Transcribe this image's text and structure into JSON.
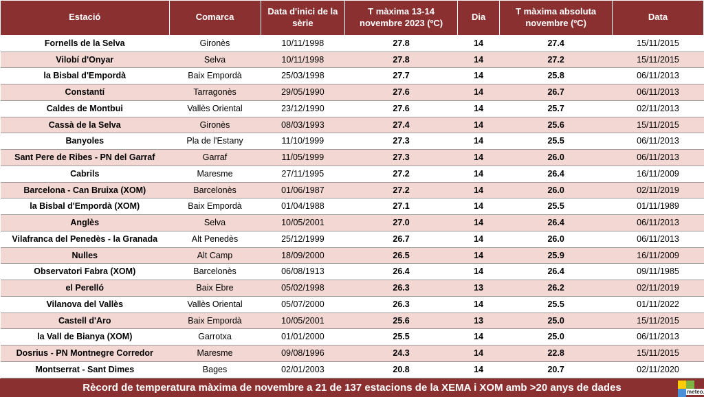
{
  "table": {
    "header_bg": "#8b3030",
    "header_fg": "#ffffff",
    "row_even_bg": "#ffffff",
    "row_odd_bg": "#f2d7d2",
    "columns": [
      "Estació",
      "Comarca",
      "Data d'inici de la sèrie",
      "T màxima 13-14 novembre 2023 (ºC)",
      "Dia",
      "T màxima absoluta novembre (ºC)",
      "Data"
    ],
    "bold_cols": [
      0,
      3,
      4,
      5
    ],
    "rows": [
      [
        "Fornells de la Selva",
        "Gironès",
        "10/11/1998",
        "27.8",
        "14",
        "27.4",
        "15/11/2015"
      ],
      [
        "Vilobí d'Onyar",
        "Selva",
        "10/11/1998",
        "27.8",
        "14",
        "27.2",
        "15/11/2015"
      ],
      [
        "la Bisbal d'Empordà",
        "Baix Empordà",
        "25/03/1998",
        "27.7",
        "14",
        "25.8",
        "06/11/2013"
      ],
      [
        "Constantí",
        "Tarragonès",
        "29/05/1990",
        "27.6",
        "14",
        "26.7",
        "06/11/2013"
      ],
      [
        "Caldes de Montbui",
        "Vallès Oriental",
        "23/12/1990",
        "27.6",
        "14",
        "25.7",
        "02/11/2013"
      ],
      [
        "Cassà de la Selva",
        "Gironès",
        "08/03/1993",
        "27.4",
        "14",
        "25.6",
        "15/11/2015"
      ],
      [
        "Banyoles",
        "Pla de l'Estany",
        "11/10/1999",
        "27.3",
        "14",
        "25.5",
        "06/11/2013"
      ],
      [
        "Sant Pere de Ribes - PN del Garraf",
        "Garraf",
        "11/05/1999",
        "27.3",
        "14",
        "26.0",
        "06/11/2013"
      ],
      [
        "Cabrils",
        "Maresme",
        "27/11/1995",
        "27.2",
        "14",
        "26.4",
        "16/11/2009"
      ],
      [
        "Barcelona - Can Bruixa (XOM)",
        "Barcelonès",
        "01/06/1987",
        "27.2",
        "14",
        "26.0",
        "02/11/2019"
      ],
      [
        "la Bisbal d'Empordà (XOM)",
        "Baix Empordà",
        "01/04/1988",
        "27.1",
        "14",
        "25.5",
        "01/11/1989"
      ],
      [
        "Anglès",
        "Selva",
        "10/05/2001",
        "27.0",
        "14",
        "26.4",
        "06/11/2013"
      ],
      [
        "Vilafranca del Penedès - la Granada",
        "Alt Penedès",
        "25/12/1999",
        "26.7",
        "14",
        "26.0",
        "06/11/2013"
      ],
      [
        "Nulles",
        "Alt Camp",
        "18/09/2000",
        "26.5",
        "14",
        "25.9",
        "16/11/2009"
      ],
      [
        "Observatori Fabra (XOM)",
        "Barcelonès",
        "06/08/1913",
        "26.4",
        "14",
        "26.4",
        "09/11/1985"
      ],
      [
        "el Perelló",
        "Baix Ebre",
        "05/02/1998",
        "26.3",
        "13",
        "26.2",
        "02/11/2019"
      ],
      [
        "Vilanova del Vallès",
        "Vallès Oriental",
        "05/07/2000",
        "26.3",
        "14",
        "25.5",
        "01/11/2022"
      ],
      [
        "Castell d'Aro",
        "Baix Empordà",
        "10/05/2001",
        "25.6",
        "13",
        "25.0",
        "15/11/2015"
      ],
      [
        "la Vall de Bianya (XOM)",
        "Garrotxa",
        "01/01/2000",
        "25.5",
        "14",
        "25.0",
        "06/11/2013"
      ],
      [
        "Dosrius - PN Montnegre Corredor",
        "Maresme",
        "09/08/1996",
        "24.3",
        "14",
        "22.8",
        "15/11/2015"
      ],
      [
        "Montserrat - Sant Dimes",
        "Bages",
        "02/01/2003",
        "20.8",
        "14",
        "20.7",
        "02/11/2020"
      ]
    ]
  },
  "footer": {
    "text": "Rècord de temperatura màxima de novembre a 21 de 137 estacions de la XEMA i XOM amb >20 anys de dades",
    "logo_text": "meteo.c"
  }
}
